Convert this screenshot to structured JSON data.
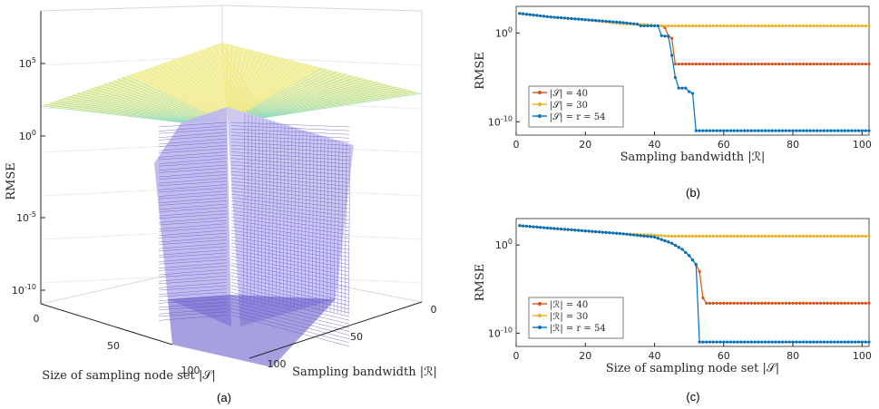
{
  "chart_data": [
    {
      "panel": "(a)",
      "type": "surface3d",
      "x_axis": {
        "label": "Size of sampling node set |𝒮|",
        "ticks": [
          "0",
          "50",
          "100"
        ]
      },
      "y_axis": {
        "label": "Sampling bandwidth |ℛ|",
        "ticks": [
          "0",
          "50",
          "100"
        ]
      },
      "z_axis": {
        "label": "RMSE",
        "scale": "log",
        "ticks": [
          "10^5",
          "10^0",
          "10^-5",
          "10^-10"
        ]
      },
      "description_values": {
        "plateau_rmse": 100,
        "floor_rmse": 1e-12,
        "threshold_size": 54,
        "threshold_bandwidth": 54
      },
      "colormap": "parula (blue to yellow)"
    },
    {
      "panel": "(b)",
      "type": "line",
      "xlabel": "Sampling bandwidth |ℛ|",
      "ylabel": "RMSE",
      "xlim": [
        0,
        102
      ],
      "ylim_log10": [
        -11.5,
        3
      ],
      "xticks": [
        "0",
        "20",
        "40",
        "60",
        "80",
        "100"
      ],
      "yticks": [
        {
          "label": "10^0",
          "exp": 0
        },
        {
          "label": "10^-10",
          "exp": -10
        }
      ],
      "series": [
        {
          "name": "|𝒮| = 40",
          "color": "#D95319",
          "points": [
            [
              1,
              2.2
            ],
            [
              10,
              1.8
            ],
            [
              20,
              1.5
            ],
            [
              30,
              1.1
            ],
            [
              42,
              0.8
            ],
            [
              43,
              0.6
            ],
            [
              44,
              -0.3
            ],
            [
              45,
              -0.6
            ],
            [
              46,
              -3.5
            ],
            [
              47,
              -3.5
            ],
            [
              60,
              -3.5
            ],
            [
              80,
              -3.5
            ],
            [
              102,
              -3.5
            ]
          ]
        },
        {
          "name": "|𝒮| = 30",
          "color": "#EDB120",
          "points": [
            [
              1,
              2.2
            ],
            [
              10,
              1.8
            ],
            [
              20,
              1.5
            ],
            [
              30,
              1.1
            ],
            [
              42,
              0.8
            ],
            [
              43,
              0.8
            ],
            [
              60,
              0.8
            ],
            [
              80,
              0.8
            ],
            [
              102,
              0.8
            ]
          ]
        },
        {
          "name": "|𝒮| = r = 54",
          "color": "#0072BD",
          "points": [
            [
              1,
              2.2
            ],
            [
              10,
              1.8
            ],
            [
              20,
              1.5
            ],
            [
              30,
              1.2
            ],
            [
              35,
              1.0
            ],
            [
              36,
              0.8
            ],
            [
              41,
              0.8
            ],
            [
              42,
              -0.3
            ],
            [
              44,
              -0.4
            ],
            [
              45,
              -2.5
            ],
            [
              46,
              -5.0
            ],
            [
              47,
              -6.2
            ],
            [
              49,
              -6.2
            ],
            [
              50,
              -6.6
            ],
            [
              51,
              -6.8
            ],
            [
              52,
              -11.0
            ],
            [
              60,
              -11.0
            ],
            [
              80,
              -11.0
            ],
            [
              102,
              -11.0
            ]
          ]
        }
      ]
    },
    {
      "panel": "(c)",
      "type": "line",
      "xlabel": "Size of sampling node set |𝒮|",
      "ylabel": "RMSE",
      "xlim": [
        0,
        102
      ],
      "ylim_log10": [
        -11.5,
        3
      ],
      "xticks": [
        "0",
        "20",
        "40",
        "60",
        "80",
        "100"
      ],
      "yticks": [
        {
          "label": "10^0",
          "exp": 0
        },
        {
          "label": "10^-10",
          "exp": -10
        }
      ],
      "series": [
        {
          "name": "|ℛ| = 40",
          "color": "#D95319",
          "points": [
            [
              1,
              2.2
            ],
            [
              10,
              1.9
            ],
            [
              20,
              1.6
            ],
            [
              30,
              1.3
            ],
            [
              40,
              0.9
            ],
            [
              45,
              0.2
            ],
            [
              48,
              -0.5
            ],
            [
              50,
              -1.2
            ],
            [
              52,
              -2.2
            ],
            [
              53,
              -3.0
            ],
            [
              54,
              -6.0
            ],
            [
              55,
              -6.6
            ],
            [
              70,
              -6.6
            ],
            [
              90,
              -6.6
            ],
            [
              102,
              -6.6
            ]
          ]
        },
        {
          "name": "|ℛ| = 30",
          "color": "#EDB120",
          "points": [
            [
              1,
              2.2
            ],
            [
              10,
              1.9
            ],
            [
              20,
              1.6
            ],
            [
              30,
              1.3
            ],
            [
              40,
              1.1
            ],
            [
              45,
              1.0
            ],
            [
              60,
              1.0
            ],
            [
              80,
              1.0
            ],
            [
              102,
              1.0
            ]
          ]
        },
        {
          "name": "|ℛ| = r = 54",
          "color": "#0072BD",
          "points": [
            [
              1,
              2.2
            ],
            [
              10,
              1.9
            ],
            [
              20,
              1.6
            ],
            [
              30,
              1.3
            ],
            [
              40,
              0.9
            ],
            [
              45,
              0.2
            ],
            [
              48,
              -0.5
            ],
            [
              50,
              -1.2
            ],
            [
              52,
              -2.2
            ],
            [
              53,
              -11.0
            ],
            [
              60,
              -11.0
            ],
            [
              80,
              -11.0
            ],
            [
              102,
              -11.0
            ]
          ]
        }
      ]
    }
  ],
  "captions": {
    "a": "(a)",
    "b": "(b)",
    "c": "(c)"
  }
}
